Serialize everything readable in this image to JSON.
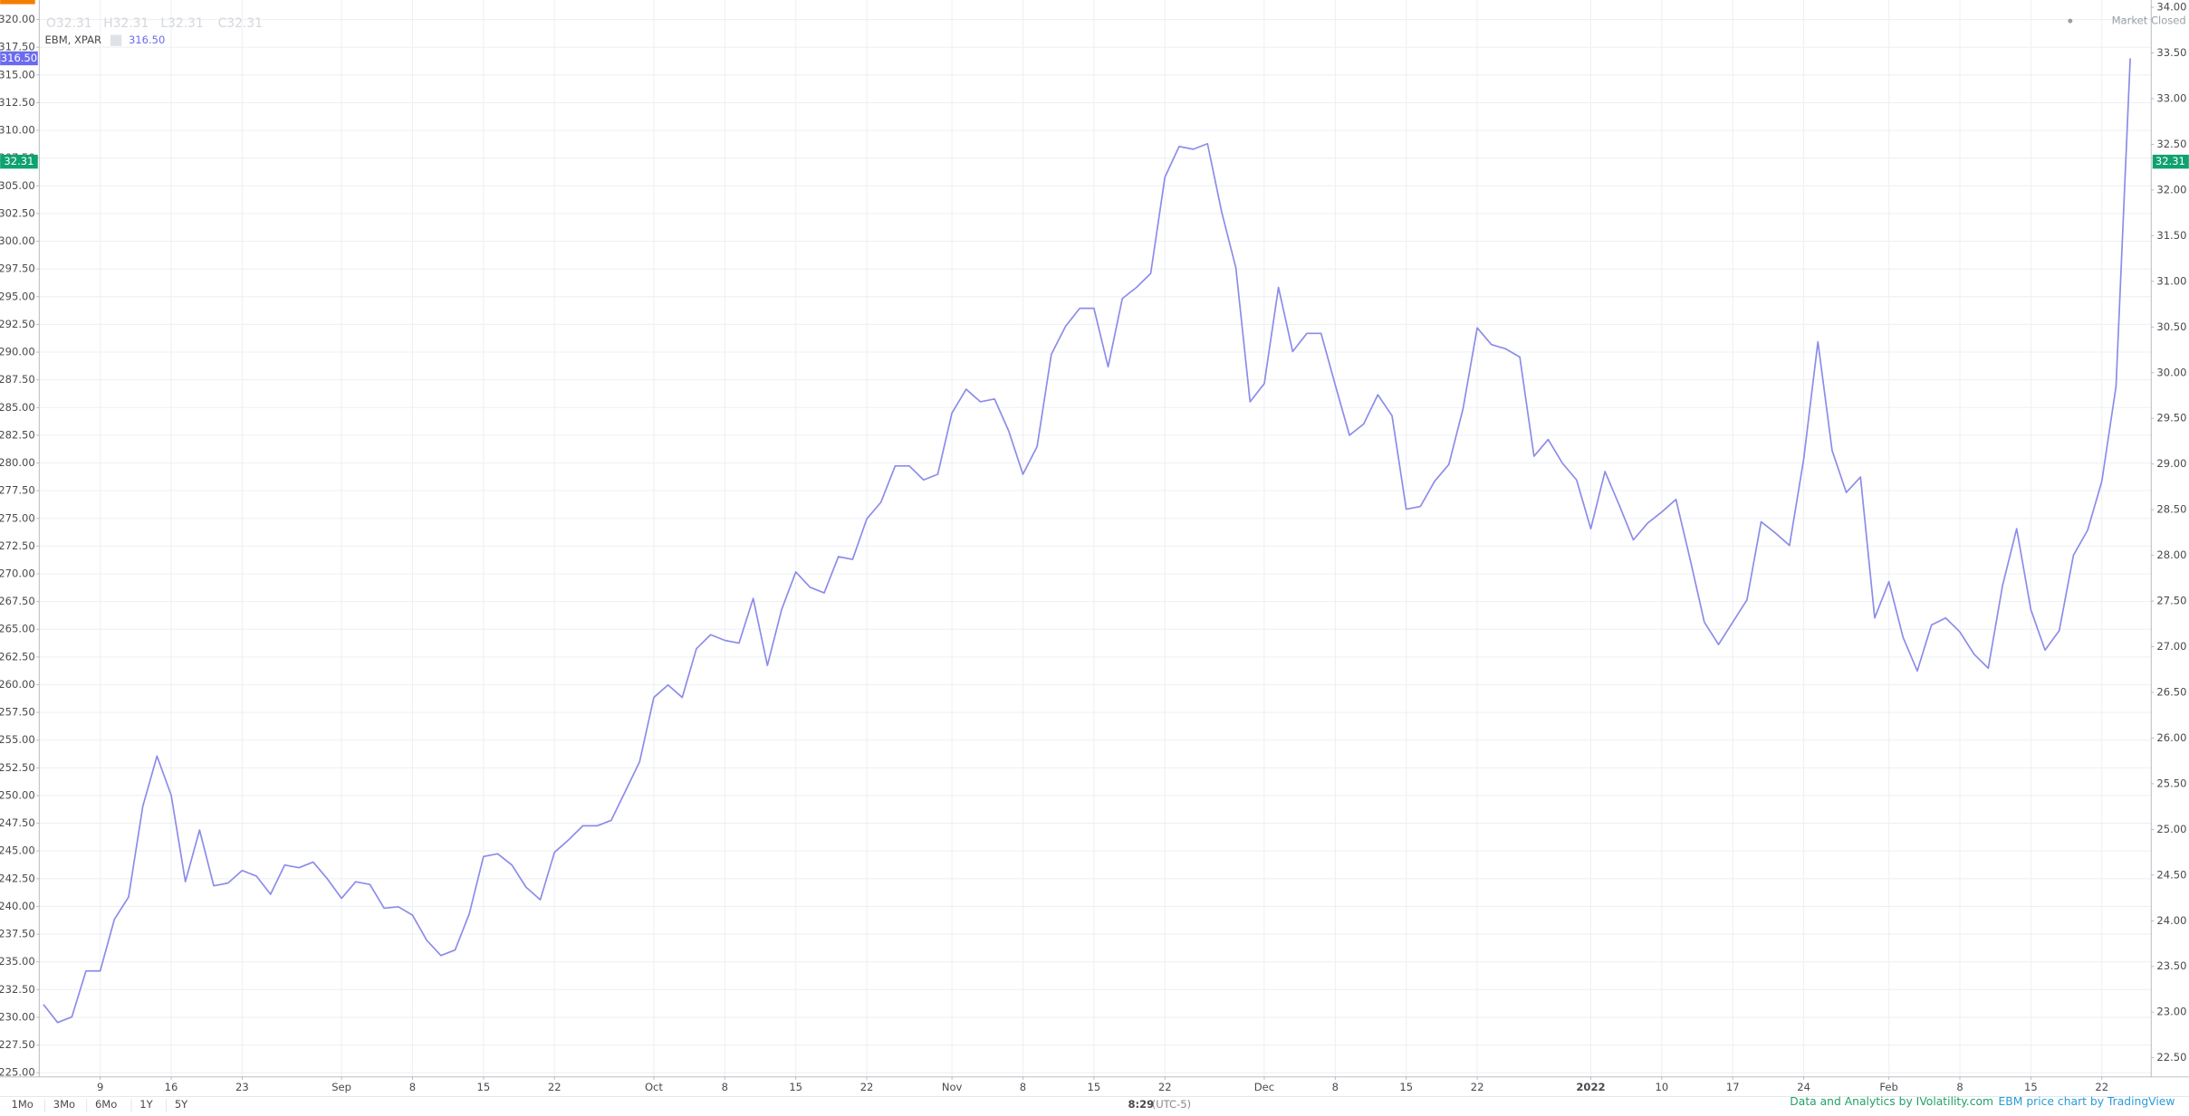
{
  "chart_data": {
    "type": "line",
    "ohlc": [
      "O32.31",
      "H32.31",
      "L32.31",
      "C32.31"
    ],
    "status": "Market Closed",
    "categories": [
      null,
      null,
      null,
      null,
      "9",
      null,
      null,
      null,
      null,
      "16",
      null,
      null,
      null,
      null,
      "23",
      null,
      null,
      null,
      null,
      null,
      null,
      "Sep",
      null,
      null,
      null,
      null,
      "8",
      null,
      null,
      null,
      null,
      "15",
      null,
      null,
      null,
      null,
      "22",
      null,
      null,
      null,
      null,
      null,
      null,
      "Oct",
      null,
      null,
      null,
      null,
      "8",
      null,
      null,
      null,
      null,
      "15",
      null,
      null,
      null,
      null,
      "22",
      null,
      null,
      null,
      null,
      null,
      "Nov",
      null,
      null,
      null,
      null,
      "8",
      null,
      null,
      null,
      null,
      "15",
      null,
      null,
      null,
      null,
      "22",
      null,
      null,
      null,
      null,
      null,
      null,
      "Dec",
      null,
      null,
      null,
      null,
      "8",
      null,
      null,
      null,
      null,
      "15",
      null,
      null,
      null,
      null,
      "22",
      null,
      null,
      null,
      null,
      null,
      null,
      null,
      "2022",
      null,
      null,
      null,
      null,
      "10",
      null,
      null,
      null,
      null,
      "17",
      null,
      null,
      null,
      null,
      "24",
      null,
      null,
      null,
      null,
      null,
      "Feb",
      null,
      null,
      null,
      null,
      "8",
      null,
      null,
      null,
      null,
      "15",
      null,
      null,
      null,
      null,
      "22",
      null,
      null
    ],
    "series": [
      {
        "name": "EBM, XPAR",
        "color": "#8c8cea",
        "last_label": "316.50",
        "values": [
          231.16,
          229.53,
          230.03,
          234.18,
          234.18,
          238.84,
          240.85,
          249.03,
          253.56,
          250.04,
          242.23,
          246.89,
          241.86,
          242.11,
          243.24,
          242.74,
          241.1,
          243.74,
          243.49,
          244.0,
          242.49,
          240.73,
          242.23,
          241.98,
          239.84,
          239.97,
          239.21,
          236.95,
          235.57,
          236.07,
          239.34,
          244.5,
          244.75,
          243.74,
          241.73,
          240.6,
          244.88,
          246.01,
          247.27,
          247.27,
          247.77,
          250.41,
          253.06,
          258.85,
          259.98,
          258.85,
          263.25,
          264.51,
          264.0,
          263.75,
          267.78,
          261.74,
          266.77,
          270.17,
          268.79,
          268.28,
          271.55,
          271.3,
          274.95,
          276.46,
          279.73,
          279.73,
          278.47,
          278.98,
          284.51,
          286.65,
          285.52,
          285.77,
          282.88,
          278.98,
          281.49,
          289.8,
          292.32,
          293.95,
          293.95,
          288.67,
          294.83,
          295.84,
          297.1,
          305.78,
          308.55,
          308.3,
          308.8,
          302.63,
          297.6,
          285.52,
          287.16,
          295.84,
          290.05,
          291.69,
          291.69,
          287.03,
          282.5,
          283.51,
          286.15,
          284.26,
          275.83,
          276.08,
          278.35,
          279.86,
          284.89,
          292.19,
          290.68,
          290.3,
          289.55,
          280.61,
          282.12,
          279.98,
          278.47,
          274.07,
          279.23,
          276.21,
          273.06,
          274.57,
          275.58,
          276.71,
          271.3,
          265.64,
          263.63,
          265.64,
          267.65,
          274.7,
          273.69,
          272.56,
          280.36,
          290.93,
          281.12,
          277.34,
          278.73,
          266.02,
          269.29,
          264.26,
          261.24,
          265.39,
          266.02,
          264.76,
          262.75,
          261.49,
          268.91,
          274.07,
          266.77,
          263.12,
          264.88,
          271.68,
          273.94,
          278.35,
          286.91,
          316.5
        ]
      }
    ],
    "ylim": [
      224.62,
      321.76
    ],
    "yticks": [
      {
        "value": 225,
        "label": "225.00"
      },
      {
        "value": 227.5,
        "label": "227.50"
      },
      {
        "value": 230,
        "label": "230.00"
      },
      {
        "value": 232.5,
        "label": "232.50"
      },
      {
        "value": 235,
        "label": "235.00"
      },
      {
        "value": 237.5,
        "label": "237.50"
      },
      {
        "value": 240,
        "label": "240.00"
      },
      {
        "value": 242.5,
        "label": "242.50"
      },
      {
        "value": 245,
        "label": "245.00"
      },
      {
        "value": 247.5,
        "label": "247.50"
      },
      {
        "value": 250,
        "label": "250.00"
      },
      {
        "value": 252.5,
        "label": "252.50"
      },
      {
        "value": 255,
        "label": "255.00"
      },
      {
        "value": 257.5,
        "label": "257.50"
      },
      {
        "value": 260,
        "label": "260.00"
      },
      {
        "value": 262.5,
        "label": "262.50"
      },
      {
        "value": 265,
        "label": "265.00"
      },
      {
        "value": 267.5,
        "label": "267.50"
      },
      {
        "value": 270,
        "label": "270.00"
      },
      {
        "value": 272.5,
        "label": "272.50"
      },
      {
        "value": 275,
        "label": "275.00"
      },
      {
        "value": 277.5,
        "label": "277.50"
      },
      {
        "value": 280,
        "label": "280.00"
      },
      {
        "value": 282.5,
        "label": "282.50"
      },
      {
        "value": 285,
        "label": "285.00"
      },
      {
        "value": 287.5,
        "label": "287.50"
      },
      {
        "value": 290,
        "label": "290.00"
      },
      {
        "value": 292.5,
        "label": "292.50"
      },
      {
        "value": 295,
        "label": "295.00"
      },
      {
        "value": 297.5,
        "label": "297.50"
      },
      {
        "value": 300,
        "label": "300.00"
      },
      {
        "value": 302.5,
        "label": "302.50"
      },
      {
        "value": 305,
        "label": "305.00"
      },
      {
        "value": 307.5,
        "label": "307.50"
      },
      {
        "value": 310,
        "label": "310.00"
      },
      {
        "value": 312.5,
        "label": "312.50"
      },
      {
        "value": 315,
        "label": "315.00"
      },
      {
        "value": 317.5,
        "label": "317.50"
      },
      {
        "value": 320,
        "label": "320.00"
      }
    ],
    "y2lim": [
      22.29,
      34.08
    ],
    "y2ticks": [
      {
        "value": 22.5,
        "label": "22.50"
      },
      {
        "value": 23,
        "label": "23.00"
      },
      {
        "value": 23.5,
        "label": "23.50"
      },
      {
        "value": 24,
        "label": "24.00"
      },
      {
        "value": 24.5,
        "label": "24.50"
      },
      {
        "value": 25,
        "label": "25.00"
      },
      {
        "value": 25.5,
        "label": "25.50"
      },
      {
        "value": 26,
        "label": "26.00"
      },
      {
        "value": 26.5,
        "label": "26.50"
      },
      {
        "value": 27,
        "label": "27.00"
      },
      {
        "value": 27.5,
        "label": "27.50"
      },
      {
        "value": 28,
        "label": "28.00"
      },
      {
        "value": 28.5,
        "label": "28.50"
      },
      {
        "value": 29,
        "label": "29.00"
      },
      {
        "value": 29.5,
        "label": "29.50"
      },
      {
        "value": 30,
        "label": "30.00"
      },
      {
        "value": 30.5,
        "label": "30.50"
      },
      {
        "value": 31,
        "label": "31.00"
      },
      {
        "value": 31.5,
        "label": "31.50"
      },
      {
        "value": 32,
        "label": "32.00"
      },
      {
        "value": 32.5,
        "label": "32.50"
      },
      {
        "value": 33,
        "label": "33.00"
      },
      {
        "value": 33.5,
        "label": "33.50"
      },
      {
        "value": 34,
        "label": "34.00"
      }
    ],
    "y2_marker": 32.31,
    "y2_marker_color": "#0ea271",
    "grid": true,
    "toolbar": {
      "ranges": [
        "1Mo",
        "3Mo",
        "6Mo",
        "1Y",
        "5Y"
      ],
      "time": "8:29",
      "timezone": "(UTC-5)"
    },
    "credits": [
      "Data and Analytics by IVolatility.com",
      "EBM price chart by TradingView"
    ]
  }
}
